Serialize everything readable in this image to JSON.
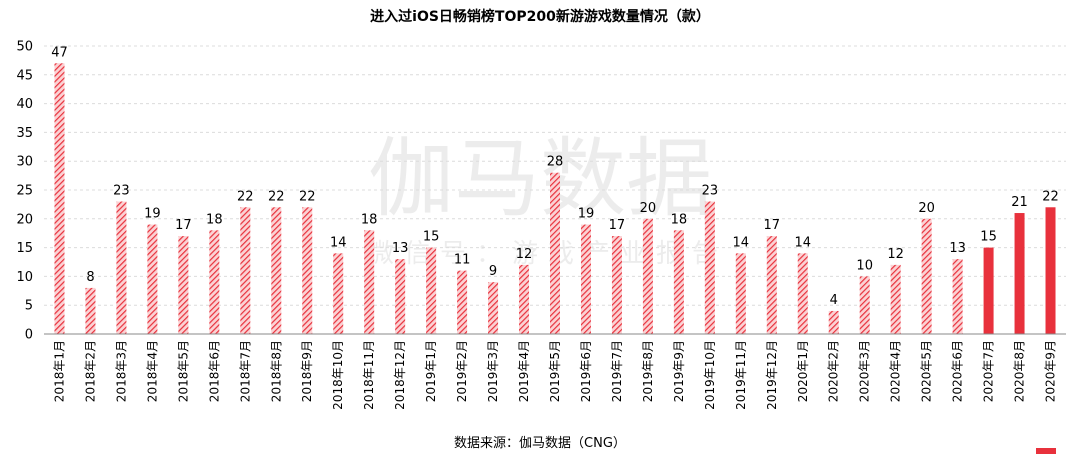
{
  "chart_data": {
    "type": "bar",
    "title": "进入过iOS日畅销榜TOP200新游游戏数量情况（款）",
    "source": "数据来源：伽马数据（CNG）",
    "watermark": "伽马数据",
    "watermark_sub": "微信号：游戏产业报告",
    "ylim": [
      0,
      50
    ],
    "yticks": [
      0,
      5,
      10,
      15,
      20,
      25,
      30,
      35,
      40,
      45,
      50
    ],
    "grid": true,
    "categories": [
      "2018年1月",
      "2018年2月",
      "2018年3月",
      "2018年4月",
      "2018年5月",
      "2018年6月",
      "2018年7月",
      "2018年8月",
      "2018年9月",
      "2018年10月",
      "2018年11月",
      "2018年12月",
      "2019年1月",
      "2019年2月",
      "2019年3月",
      "2019年4月",
      "2019年5月",
      "2019年6月",
      "2019年7月",
      "2019年8月",
      "2019年9月",
      "2019年10月",
      "2019年11月",
      "2019年12月",
      "2020年1月",
      "2020年2月",
      "2020年3月",
      "2020年4月",
      "2020年5月",
      "2020年6月",
      "2020年7月",
      "2020年8月",
      "2020年9月"
    ],
    "values": [
      47,
      8,
      23,
      19,
      17,
      18,
      22,
      22,
      22,
      14,
      18,
      13,
      15,
      11,
      9,
      12,
      28,
      19,
      17,
      20,
      18,
      23,
      14,
      17,
      14,
      4,
      10,
      12,
      20,
      13,
      15,
      21,
      22
    ],
    "solid_from_index": 30,
    "colors": {
      "bar": "#e8313c",
      "hatch_bg": "#fbd2d4"
    }
  }
}
